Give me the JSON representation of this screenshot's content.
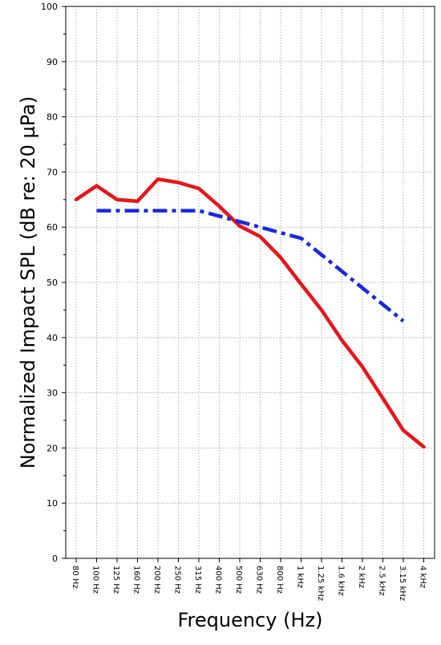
{
  "chart_data": {
    "type": "line",
    "title": "",
    "xlabel": "Frequency (Hz)",
    "ylabel": "Normalized Impact SPL (dB re: 20 µPa)",
    "categories": [
      "80 Hz",
      "100 Hz",
      "125 Hz",
      "160 Hz",
      "200 Hz",
      "250 Hz",
      "315 Hz",
      "400 Hz",
      "500 Hz",
      "630 Hz",
      "800 Hz",
      "1 kHz",
      "1.25 kHz",
      "1.6 kHz",
      "2 kHz",
      "2.5 kHz",
      "3.15 kHz",
      "4 kHz"
    ],
    "ylim": [
      0,
      100
    ],
    "yticks": [
      0,
      10,
      20,
      30,
      40,
      50,
      60,
      70,
      80,
      90,
      100
    ],
    "grid": true,
    "legend": "none",
    "series": [
      {
        "color": "#e8141a",
        "style": "solid",
        "values": [
          65,
          67.5,
          65,
          64.7,
          68.7,
          68.1,
          67,
          63.8,
          60.2,
          58.3,
          54.5,
          49.7,
          45,
          39.5,
          34.7,
          29,
          23.2,
          20.2
        ]
      },
      {
        "color": "#1a28e0",
        "style": "dash-dot",
        "values": [
          null,
          63,
          63,
          63,
          63,
          63,
          63,
          62,
          61,
          60,
          59,
          58,
          55,
          52,
          49,
          46,
          43,
          null
        ]
      }
    ]
  }
}
